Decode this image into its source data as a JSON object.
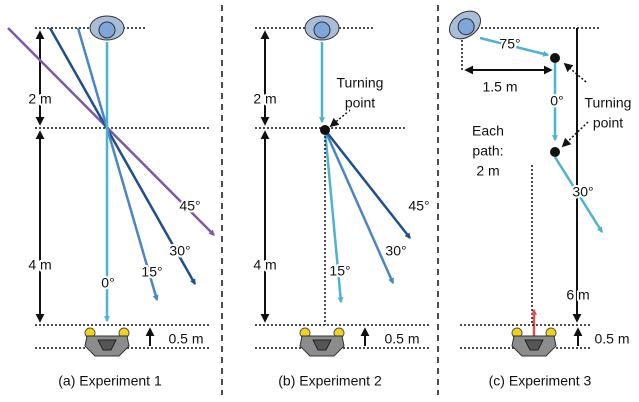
{
  "panels": [
    {
      "caption": "(a) Experiment 1",
      "distances": [
        "2 m",
        "4 m",
        "0.5 m"
      ],
      "angles": [
        "0°",
        "15°",
        "30°",
        "45°"
      ]
    },
    {
      "caption": "(b) Experiment 2",
      "distances": [
        "2 m",
        "4 m",
        "0.5 m"
      ],
      "angles": [
        "15°",
        "30°",
        "45°"
      ],
      "turning_point": [
        "Turning",
        "point"
      ]
    },
    {
      "caption": "(c) Experiment 3",
      "distances": [
        "1.5 m",
        "6 m",
        "0.5 m"
      ],
      "angles": [
        "75°",
        "0°",
        "30°"
      ],
      "turning_point": [
        "Turning",
        "point"
      ],
      "path_note": [
        "Each",
        "path:",
        "2 m"
      ]
    }
  ]
}
